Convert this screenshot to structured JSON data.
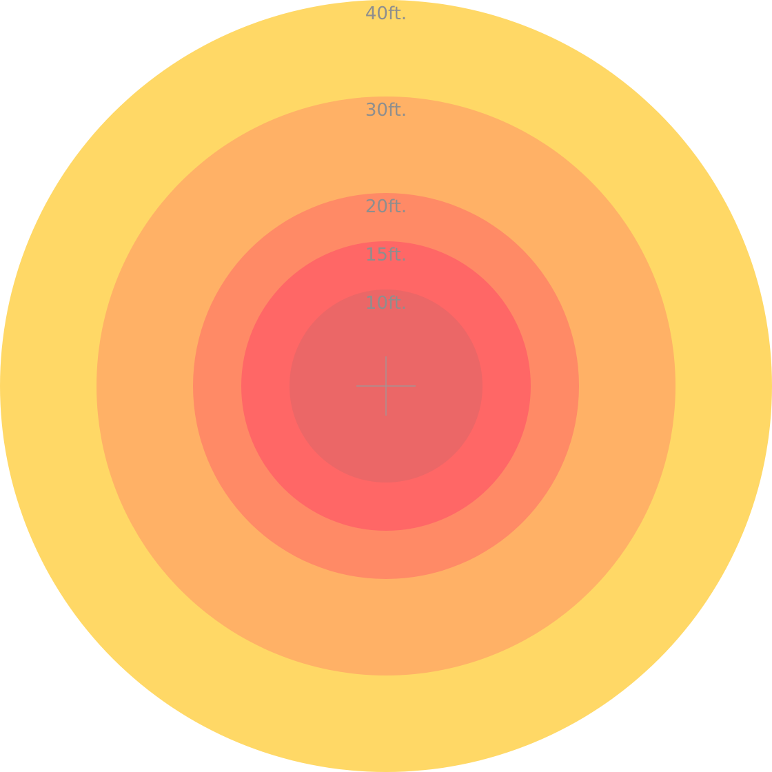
{
  "rings": [
    {
      "label": "40ft.",
      "radius_ft": 40,
      "color": "#FFD866"
    },
    {
      "label": "30ft.",
      "radius_ft": 30,
      "color": "#FFB166"
    },
    {
      "label": "20ft.",
      "radius_ft": 20,
      "color": "#FF8A66"
    },
    {
      "label": "15ft.",
      "radius_ft": 15,
      "color": "#FF6766"
    },
    {
      "label": "10ft.",
      "radius_ft": 10,
      "color": "#EB6767"
    }
  ],
  "crosshair_color": "#9a9a9a",
  "label_color": "#8e8e8e"
}
